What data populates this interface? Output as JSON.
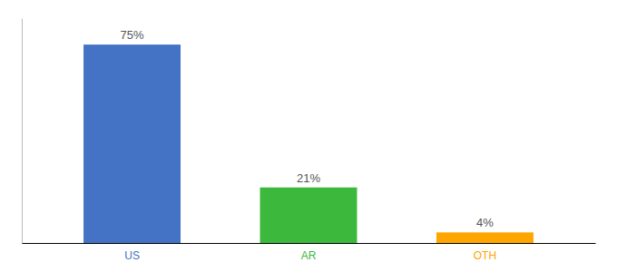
{
  "chart_data": {
    "type": "bar",
    "categories": [
      "US",
      "AR",
      "OTH"
    ],
    "values": [
      75,
      21,
      4
    ],
    "value_labels": [
      "75%",
      "21%",
      "4%"
    ],
    "colors": [
      "#4472C4",
      "#3CB83C",
      "#FFA500"
    ],
    "ylim": [
      0,
      85
    ],
    "data_labels": true,
    "tick_labels": "x"
  }
}
